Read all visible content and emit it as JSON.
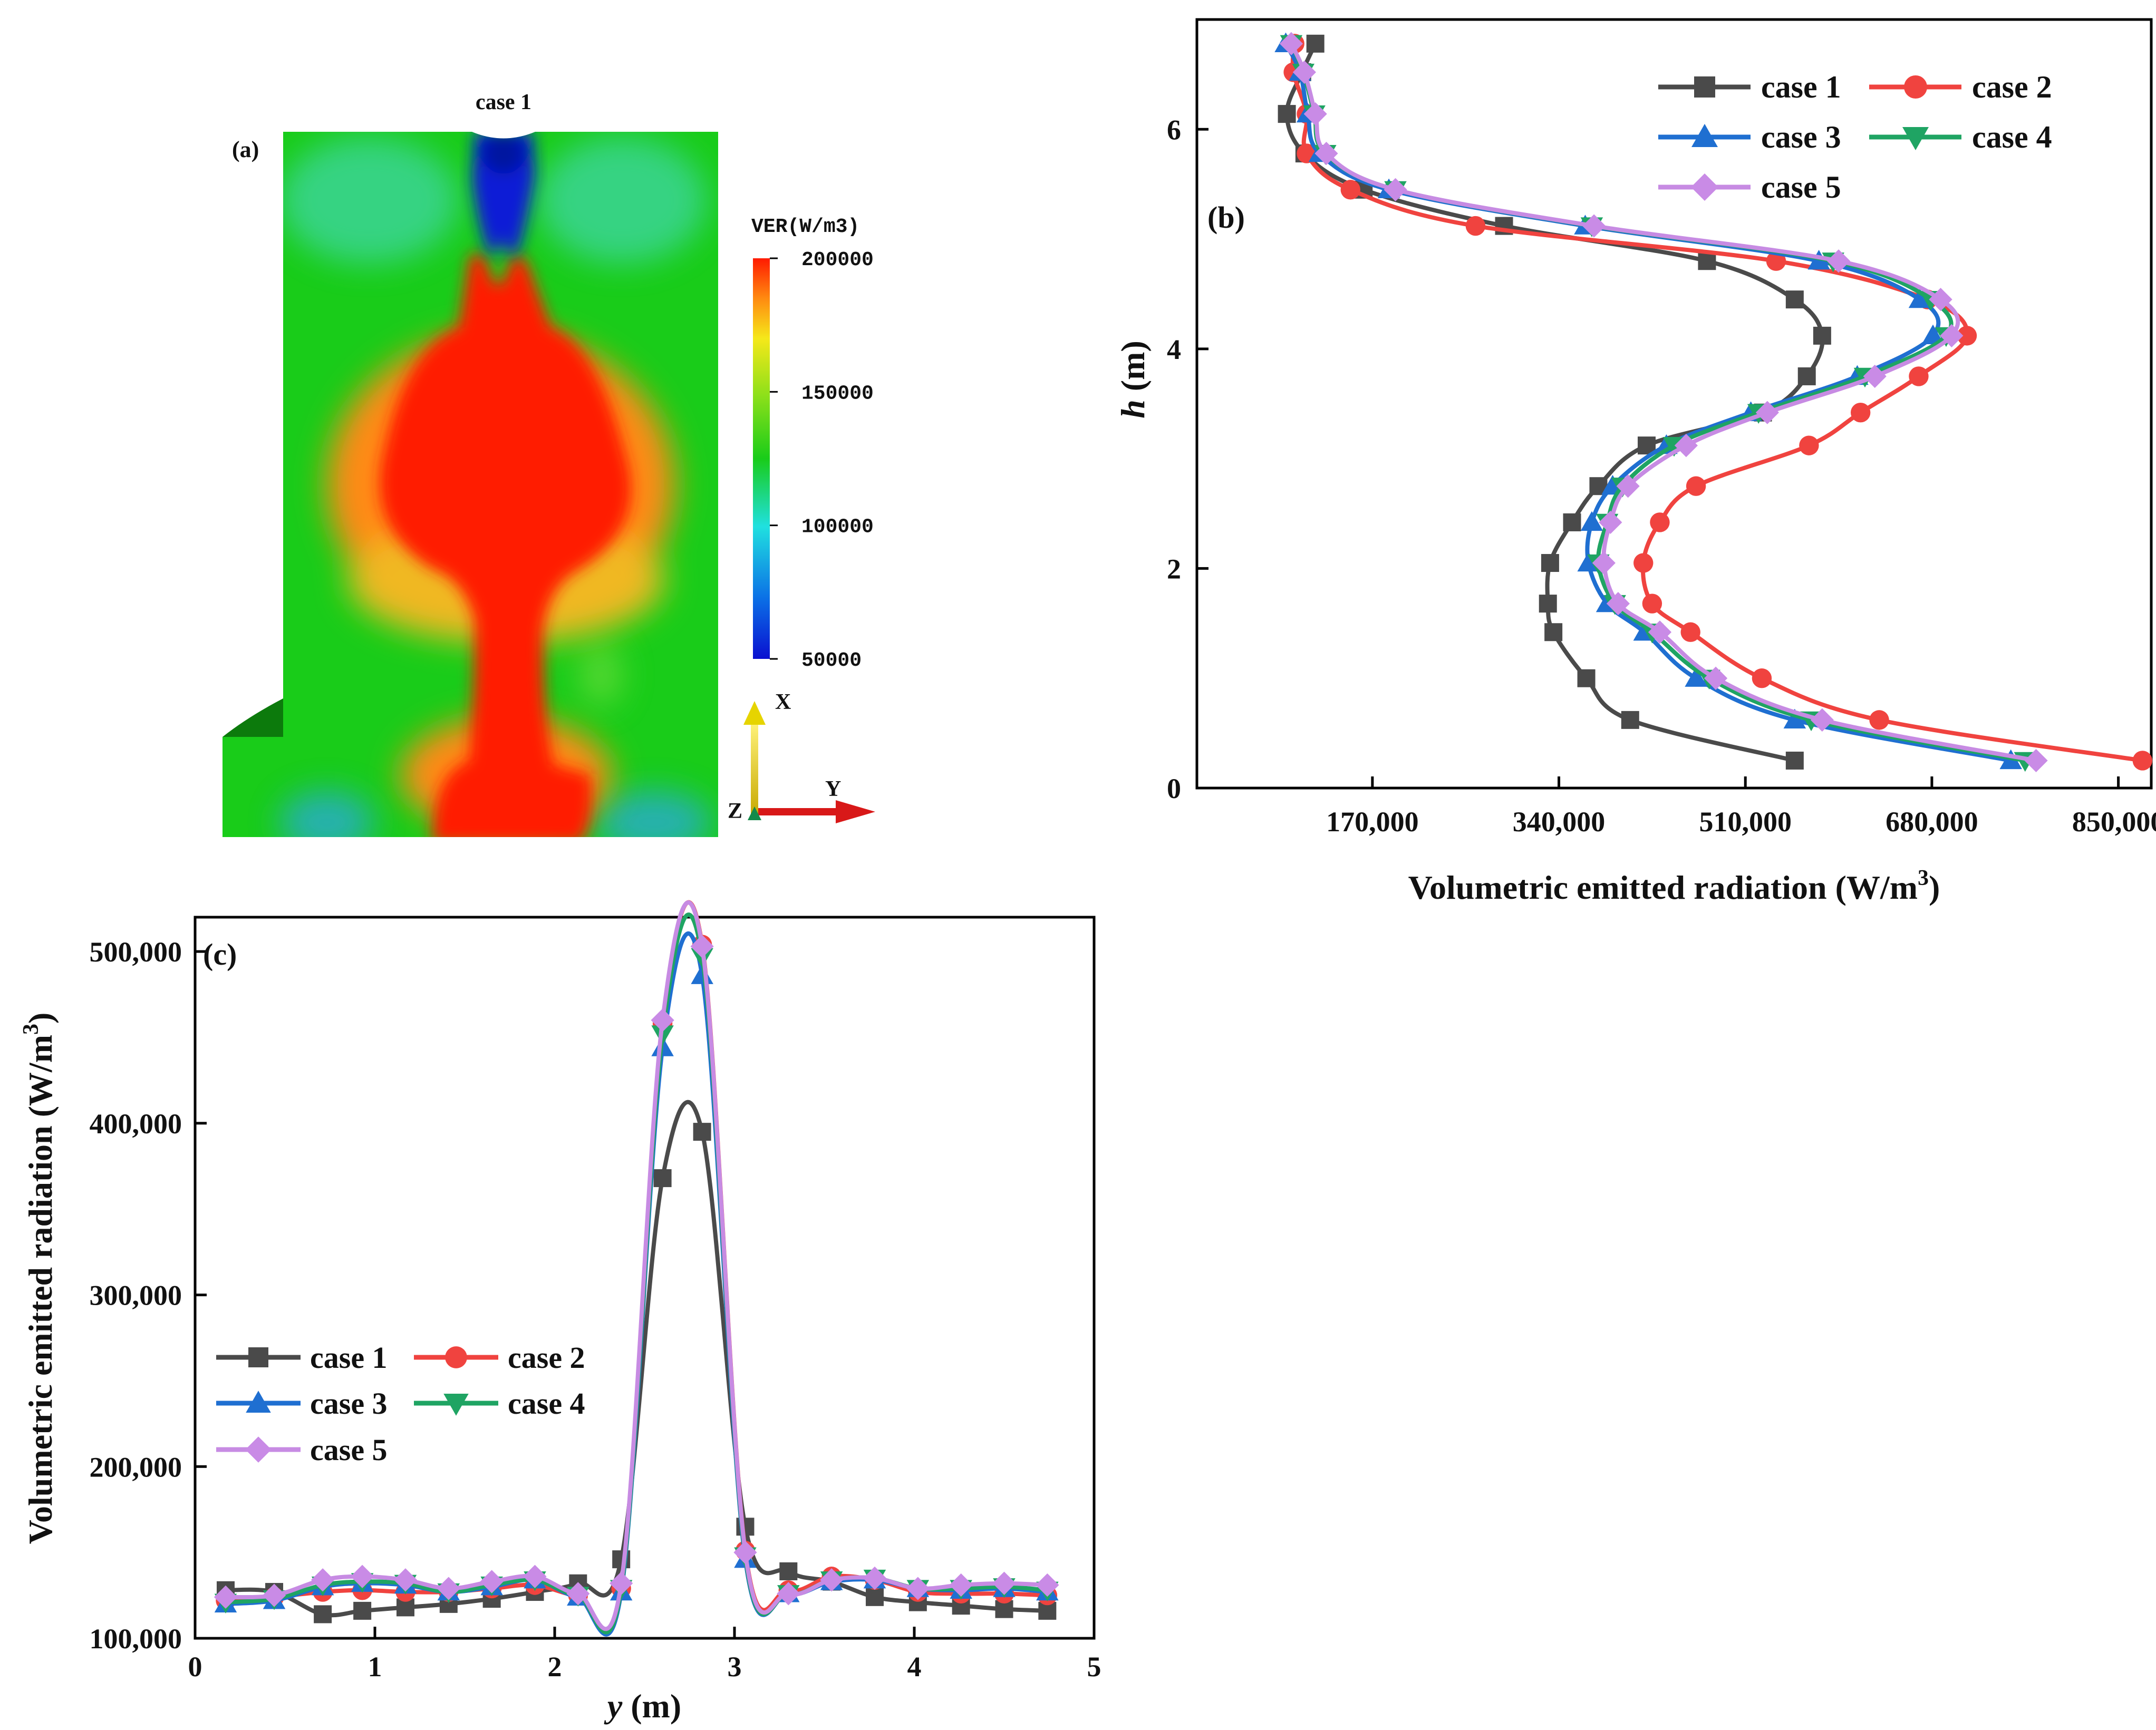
{
  "colors": {
    "case1": "#4a4a4a",
    "case2": "#f0433f",
    "case3": "#1f6fd1",
    "case4": "#1fa463",
    "case5": "#c78be3",
    "marker5": "#c98be6",
    "contour_red": "#ff1a00",
    "contour_green": "#19cc19",
    "contour_blue": "#0a1ad6"
  },
  "panel_a": {
    "label": "(a)",
    "case_label": "case 1",
    "legend_title": "VER(W/m3)",
    "legend_ticks": [
      "200000",
      "150000",
      "100000",
      "50000"
    ],
    "axis_x": "X",
    "axis_y": "Y",
    "axis_z": "Z"
  },
  "chart_data": [
    {
      "id": "b",
      "label": "(b)",
      "type": "line",
      "xlabel": "Volumetric emitted radiation (W/m",
      "xlabel_sup": "3",
      "xlabel_end": ")",
      "ylabel": "h",
      "ylabel_unit": " (m)",
      "xlim": [
        10000,
        880000
      ],
      "ylim": [
        0,
        7
      ],
      "xticks": [
        170000,
        340000,
        510000,
        680000,
        850000
      ],
      "xtick_labels": [
        "170,000",
        "340,000",
        "510,000",
        "680,000",
        "850,000"
      ],
      "yticks": [
        0,
        2,
        4,
        6
      ],
      "ytick_labels": [
        "0",
        "2",
        "4",
        "6"
      ],
      "h": [
        0.25,
        0.62,
        1.0,
        1.42,
        1.68,
        2.05,
        2.42,
        2.75,
        3.12,
        3.42,
        3.75,
        4.12,
        4.45,
        4.8,
        5.12,
        5.45,
        5.78,
        6.14,
        6.52,
        6.78
      ],
      "series": [
        {
          "name": "case 1",
          "key": "case1",
          "marker": "square",
          "values": [
            555000,
            405000,
            365000,
            335000,
            330000,
            332000,
            352000,
            376000,
            420000,
            526000,
            566000,
            580000,
            555000,
            475000,
            290000,
            162000,
            108000,
            92000,
            106000,
            118000
          ]
        },
        {
          "name": "case 2",
          "key": "case2",
          "marker": "circle",
          "values": [
            872000,
            632000,
            525000,
            460000,
            425000,
            417000,
            432000,
            465000,
            568000,
            615000,
            668000,
            712000,
            676000,
            538000,
            264000,
            150000,
            110000,
            110000,
            98000,
            99000
          ]
        },
        {
          "name": "case 3",
          "key": "case3",
          "marker": "triangle-up",
          "values": [
            752000,
            555000,
            465000,
            418000,
            384000,
            367000,
            370000,
            389000,
            438000,
            515000,
            612000,
            681000,
            669000,
            577000,
            364000,
            185000,
            122000,
            111000,
            104000,
            91000
          ]
        },
        {
          "name": "case 4",
          "key": "case4",
          "marker": "triangle-down",
          "values": [
            765000,
            570000,
            477000,
            425000,
            391000,
            376000,
            384000,
            398000,
            445000,
            522000,
            619000,
            693000,
            679000,
            590000,
            370000,
            191000,
            127000,
            117000,
            107000,
            96000
          ]
        },
        {
          "name": "case 5",
          "key": "case5",
          "marker": "diamond",
          "values": [
            775000,
            580000,
            483000,
            432000,
            394000,
            381000,
            387000,
            403000,
            456000,
            530000,
            628000,
            698000,
            688000,
            595000,
            372000,
            191000,
            128000,
            118000,
            108000,
            96000
          ]
        }
      ]
    },
    {
      "id": "c",
      "label": "(c)",
      "type": "line",
      "xlabel": "y",
      "xlabel_unit": " (m)",
      "ylabel": "Volumetric emitted radiation (W/m",
      "ylabel_sup": "3",
      "ylabel_end": ")",
      "xlim": [
        0,
        5
      ],
      "ylim": [
        100000,
        520000
      ],
      "xticks": [
        0,
        1,
        2,
        3,
        4,
        5
      ],
      "xtick_labels": [
        "0",
        "1",
        "2",
        "3",
        "4",
        "5"
      ],
      "yticks": [
        100000,
        200000,
        300000,
        400000,
        500000
      ],
      "ytick_labels": [
        "100,000",
        "200,000",
        "300,000",
        "400,000",
        "500,000"
      ],
      "x": [
        0.17,
        0.44,
        0.71,
        0.93,
        1.17,
        1.41,
        1.65,
        1.89,
        2.13,
        2.37,
        2.6,
        2.82,
        3.06,
        3.3,
        3.54,
        3.78,
        4.02,
        4.26,
        4.5,
        4.74
      ],
      "series": [
        {
          "name": "case 1",
          "key": "case1",
          "marker": "square",
          "values": [
            128000,
            127000,
            114000,
            116000,
            118000,
            120000,
            123000,
            127000,
            132000,
            146000,
            368000,
            395000,
            165000,
            139000,
            133000,
            124000,
            121000,
            119000,
            117000,
            116000
          ]
        },
        {
          "name": "case 2",
          "key": "case2",
          "marker": "circle",
          "values": [
            122000,
            124000,
            127000,
            128000,
            127000,
            127000,
            129000,
            131000,
            125000,
            129000,
            458000,
            504000,
            151000,
            128000,
            136000,
            134000,
            127000,
            126000,
            126000,
            125000
          ]
        },
        {
          "name": "case 3",
          "key": "case3",
          "marker": "triangle-up",
          "values": [
            120000,
            122000,
            130000,
            132000,
            131000,
            127000,
            130000,
            134000,
            124000,
            127000,
            444000,
            486000,
            146000,
            126000,
            133000,
            134000,
            129000,
            128000,
            129000,
            127000
          ]
        },
        {
          "name": "case 4",
          "key": "case4",
          "marker": "triangle-down",
          "values": [
            121000,
            123000,
            131000,
            133000,
            132000,
            127000,
            131000,
            134000,
            125000,
            129000,
            452000,
            497000,
            148000,
            126000,
            134000,
            135000,
            129000,
            129000,
            130000,
            128000
          ]
        },
        {
          "name": "case 5",
          "key": "case5",
          "marker": "diamond",
          "values": [
            124000,
            125000,
            134000,
            136000,
            134000,
            129000,
            133000,
            136000,
            126000,
            132000,
            460000,
            503000,
            150000,
            126000,
            134000,
            135000,
            129000,
            131000,
            132000,
            131000
          ]
        }
      ]
    }
  ]
}
